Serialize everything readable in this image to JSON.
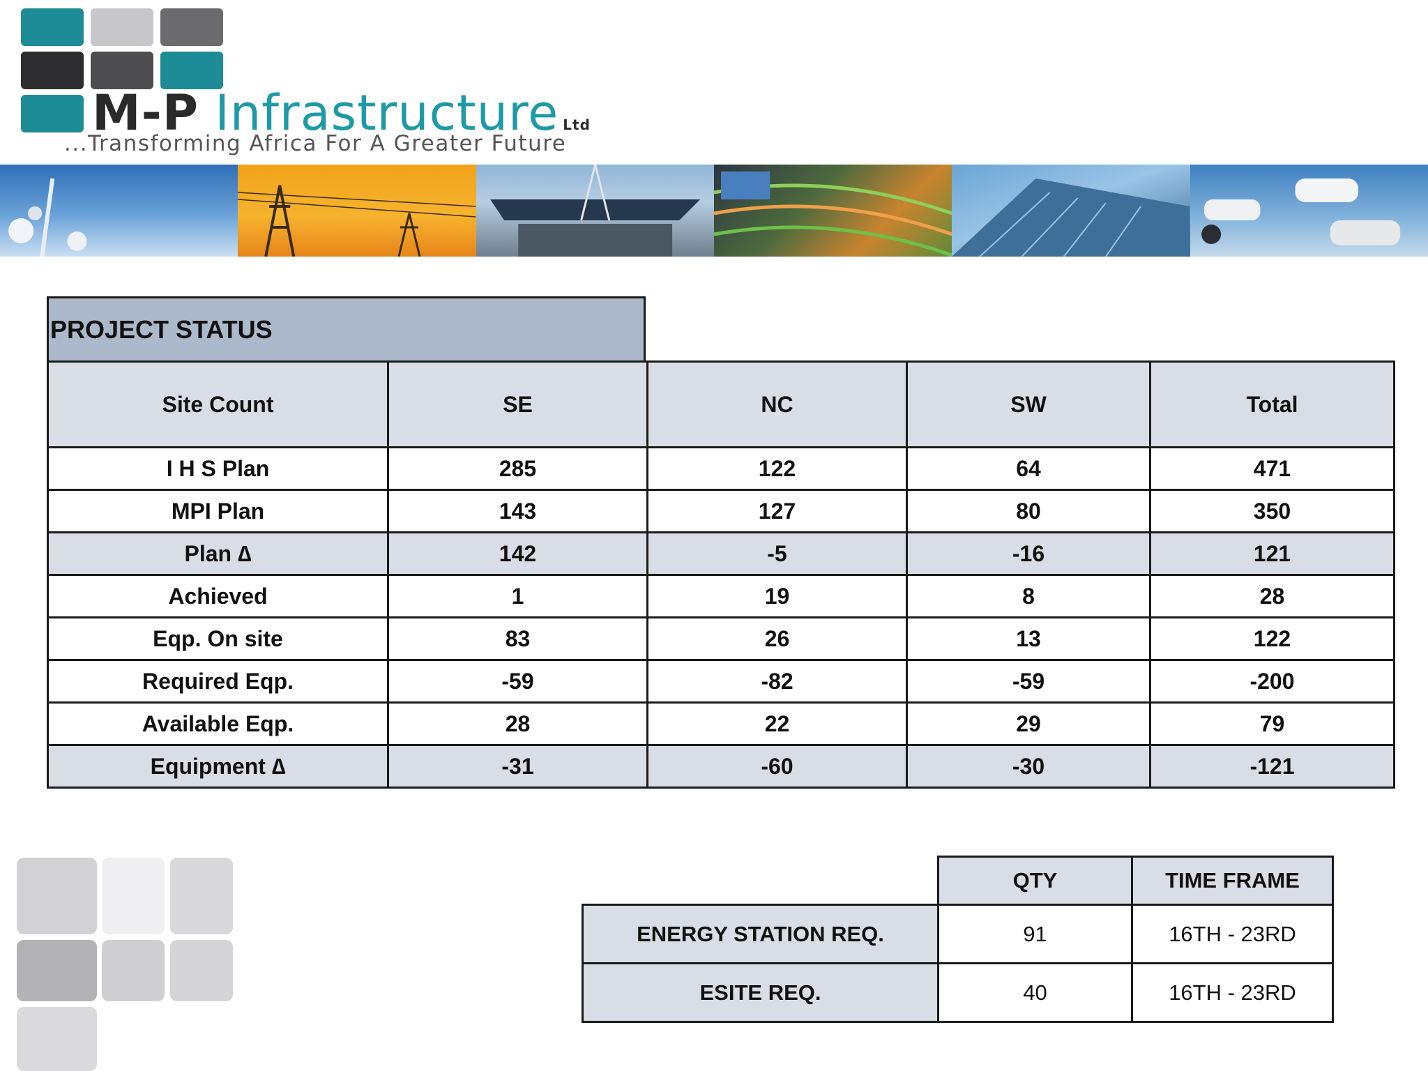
{
  "logo": {
    "name_prefix": "M-P",
    "name_main": "Infrastructure",
    "name_suffix": "Ltd",
    "tagline": "...Transforming Africa For A Greater Future"
  },
  "colors": {
    "teal": "#1e9aa6",
    "dark": "#2a2a2a",
    "header_fill": "#acb9ca",
    "row_shade": "#d9dde6"
  },
  "project_status": {
    "title": "PROJECT STATUS",
    "columns": [
      "Site Count",
      "SE",
      "NC",
      "SW",
      "Total"
    ],
    "rows": [
      {
        "label": "I H S Plan",
        "values": [
          "285",
          "122",
          "64",
          "471"
        ]
      },
      {
        "label": "MPI Plan",
        "values": [
          "143",
          "127",
          "80",
          "350"
        ]
      },
      {
        "label": "Plan ∆",
        "values": [
          "142",
          "-5",
          "-16",
          "121"
        ]
      },
      {
        "label": "Achieved",
        "values": [
          "1",
          "19",
          "8",
          "28"
        ]
      },
      {
        "label": "Eqp. On site",
        "values": [
          "83",
          "26",
          "13",
          "122"
        ]
      },
      {
        "label": "Required Eqp.",
        "values": [
          "-59",
          "-82",
          "-59",
          "-200"
        ]
      },
      {
        "label": "Available Eqp.",
        "values": [
          "28",
          "22",
          "29",
          "79"
        ]
      },
      {
        "label": "Equipment ∆",
        "values": [
          "-31",
          "-60",
          "-30",
          "-121"
        ]
      }
    ]
  },
  "requirements": {
    "columns": [
      "QTY",
      "TIME FRAME"
    ],
    "rows": [
      {
        "label": "ENERGY STATION REQ.",
        "qty": "91",
        "time_frame": "16TH - 23RD"
      },
      {
        "label": "ESITE REQ.",
        "qty": "40",
        "time_frame": "16TH - 23RD"
      }
    ]
  }
}
